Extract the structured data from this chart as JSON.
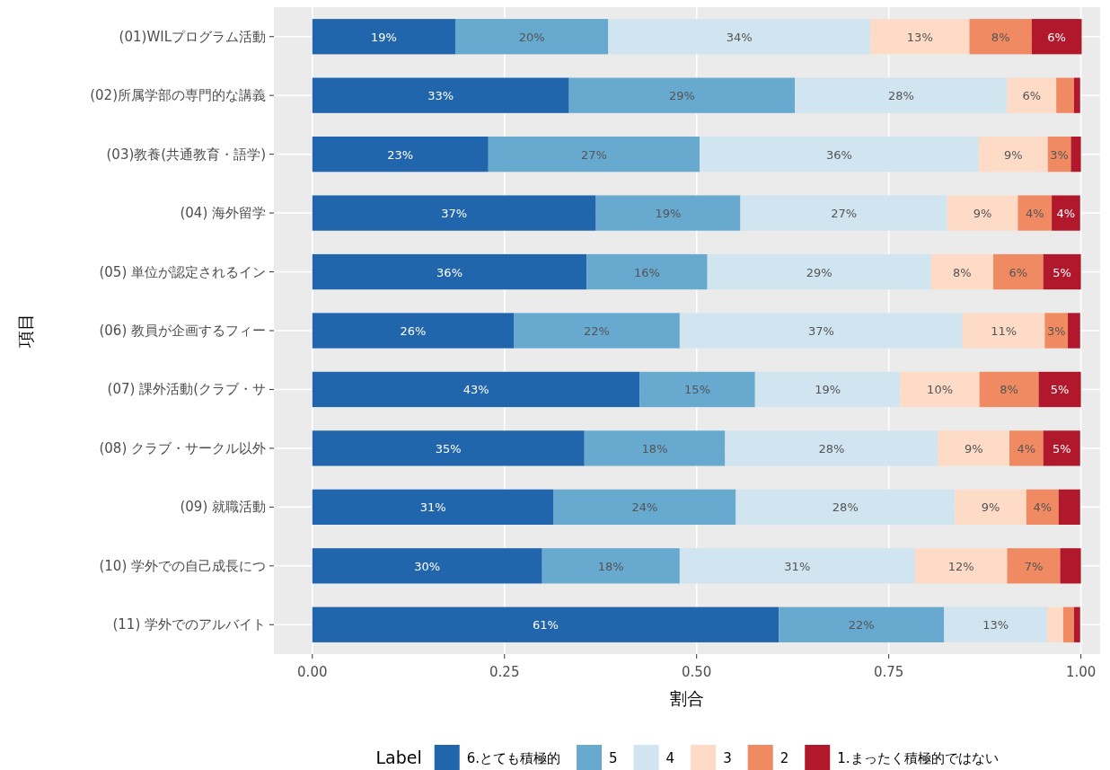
{
  "chart_data": {
    "type": "bar",
    "orientation": "horizontal",
    "stacked": true,
    "categories": [
      "(01)WILプログラム活動",
      "(02)所属学部の専門的な講義",
      "(03)教養(共通教育・語学)",
      "(04) 海外留学",
      "(05) 単位が認定されるイン",
      "(06) 教員が企画するフィー",
      "(07) 課外活動(クラブ・サ",
      "(08) クラブ・サークル以外",
      "(09) 就職活動",
      "(10) 学外での自己成長につ",
      "(11) 学外でのアルバイト"
    ],
    "series": [
      {
        "name": "6.とても積極的",
        "color": "#2166ac",
        "values": [
          0.186,
          0.334,
          0.229,
          0.369,
          0.357,
          0.262,
          0.426,
          0.354,
          0.314,
          0.299,
          0.607
        ],
        "value_labels": [
          "19%",
          "33%",
          "23%",
          "37%",
          "36%",
          "26%",
          "43%",
          "35%",
          "31%",
          "30%",
          "61%"
        ]
      },
      {
        "name": "5",
        "color": "#67a9cf",
        "values": [
          0.199,
          0.294,
          0.275,
          0.188,
          0.157,
          0.216,
          0.15,
          0.183,
          0.237,
          0.179,
          0.215
        ],
        "value_labels": [
          "20%",
          "29%",
          "27%",
          "19%",
          "16%",
          "22%",
          "15%",
          "18%",
          "24%",
          "18%",
          "22%"
        ]
      },
      {
        "name": "4",
        "color": "#d1e5f0",
        "values": [
          0.341,
          0.276,
          0.363,
          0.269,
          0.291,
          0.368,
          0.189,
          0.277,
          0.285,
          0.306,
          0.134
        ],
        "value_labels": [
          "34%",
          "28%",
          "36%",
          "27%",
          "29%",
          "37%",
          "19%",
          "28%",
          "28%",
          "31%",
          "13%"
        ]
      },
      {
        "name": "3",
        "color": "#fddbc7",
        "values": [
          0.129,
          0.064,
          0.09,
          0.092,
          0.081,
          0.107,
          0.103,
          0.093,
          0.093,
          0.12,
          0.021
        ],
        "value_labels": [
          "13%",
          "6%",
          "9%",
          "9%",
          "8%",
          "11%",
          "10%",
          "9%",
          "9%",
          "12%",
          null
        ]
      },
      {
        "name": "2",
        "color": "#ef8a62",
        "values": [
          0.081,
          0.023,
          0.03,
          0.044,
          0.065,
          0.03,
          0.077,
          0.044,
          0.042,
          0.069,
          0.014
        ],
        "value_labels": [
          "8%",
          null,
          "3%",
          "4%",
          "6%",
          "3%",
          "8%",
          "4%",
          "4%",
          "7%",
          null
        ]
      },
      {
        "name": "1.まったく積極的ではない",
        "color": "#b2182b",
        "values": [
          0.065,
          0.008,
          0.013,
          0.037,
          0.049,
          0.016,
          0.055,
          0.048,
          0.028,
          0.027,
          0.008
        ],
        "value_labels": [
          "6%",
          null,
          null,
          "4%",
          "5%",
          null,
          "5%",
          "5%",
          null,
          null,
          null
        ]
      }
    ],
    "xlim": [
      -0.05,
      1.025
    ],
    "xticks": [
      {
        "value": 0,
        "label": "0.00"
      },
      {
        "value": 0.25,
        "label": "0.25"
      },
      {
        "value": 0.5,
        "label": "0.50"
      },
      {
        "value": 0.75,
        "label": "0.75"
      },
      {
        "value": 1,
        "label": "1.00"
      }
    ],
    "xlabel": "割合",
    "ylabel": "項目",
    "legend_title": "Label",
    "legend": "bottom",
    "grid": true
  }
}
